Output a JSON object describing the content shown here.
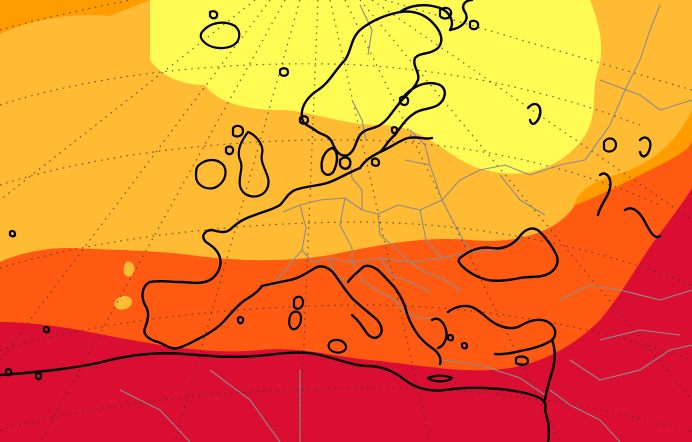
{
  "map": {
    "kind": "forecast-field",
    "region": "Europe",
    "projection": "polar-stereographic",
    "legend": null,
    "colors": {
      "band_1": "#fffb55",
      "band_2": "#ffbb33",
      "band_3": "#ff9c00",
      "band_4": "#ff5a12",
      "band_5": "#d90e32",
      "coastline": "#000000",
      "borders": "#8c8c8c",
      "graticule": "#333333"
    },
    "features": [
      "coastlines",
      "country-borders",
      "graticule-dotted",
      "filled-contours"
    ]
  }
}
